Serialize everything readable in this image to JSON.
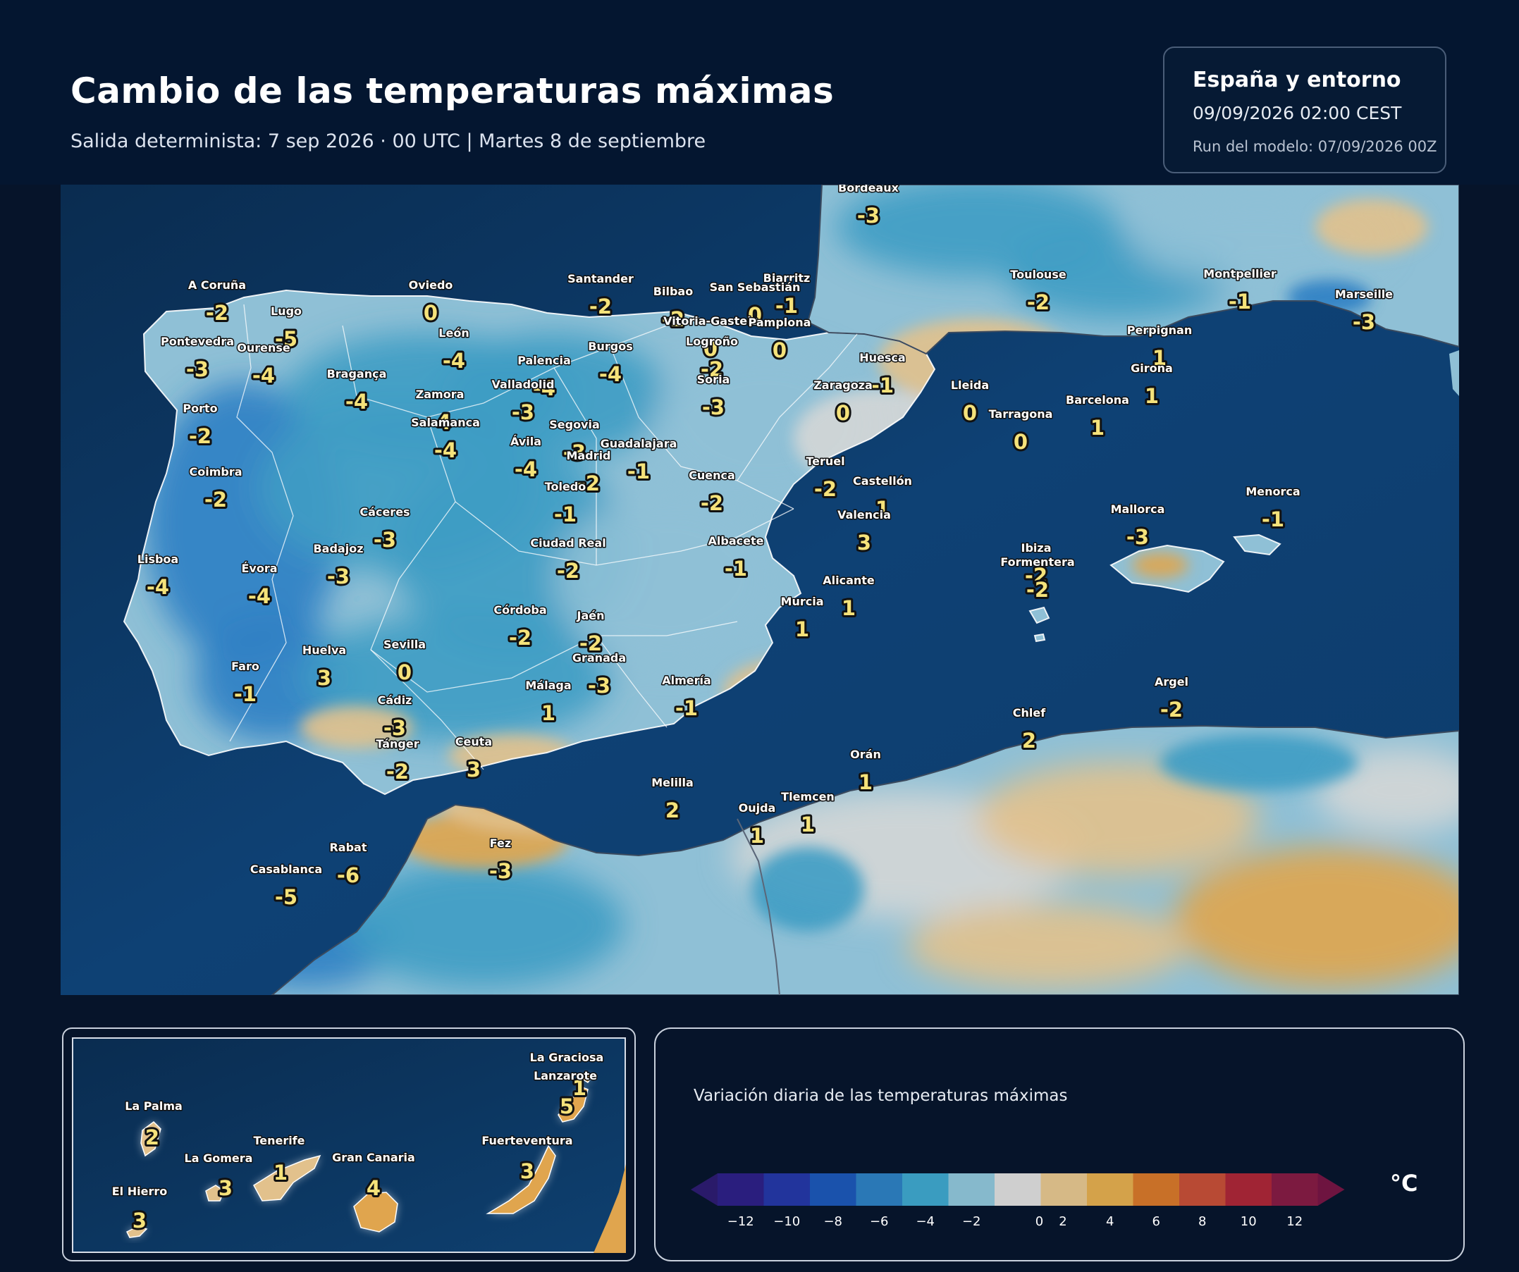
{
  "header": {
    "title": "Cambio de las temperaturas máximas",
    "subtitle": "Salida determinista: 7 sep 2026 · 00 UTC  |  Martes 8 de septiembre"
  },
  "info": {
    "region": "España y entorno",
    "valid_time": "09/09/2026  02:00 CEST",
    "run": "Run del modelo: 07/09/2026 00Z"
  },
  "colors": {
    "sea": "#0c3a66",
    "sea_deep": "#082c52",
    "land_base": "#8fc0d6",
    "cold_1": "#3e9cc4",
    "cold_2": "#2f7fc4",
    "neutral": "#d4d6d6",
    "warm_1": "#e2c18c",
    "warm_2": "#e0a54e",
    "label_value": "#f5e27a"
  },
  "map": {
    "cities": [
      {
        "name": "Bordeaux",
        "value": "-3"
      },
      {
        "name": "A Coruña",
        "value": "-2"
      },
      {
        "name": "Oviedo",
        "value": "0"
      },
      {
        "name": "Santander",
        "value": "-2"
      },
      {
        "name": "Bilbao",
        "value": "-2"
      },
      {
        "name": "Biarritz",
        "value": "-1"
      },
      {
        "name": "San Sebastián",
        "value": "0"
      },
      {
        "name": "Toulouse",
        "value": "-2"
      },
      {
        "name": "Montpellier",
        "value": "-1"
      },
      {
        "name": "Marseille",
        "value": "-3"
      },
      {
        "name": "Lugo",
        "value": "-5"
      },
      {
        "name": "Vitoria-Gasteiz",
        "value": "0"
      },
      {
        "name": "Pamplona",
        "value": "0"
      },
      {
        "name": "Pontevedra",
        "value": "-3"
      },
      {
        "name": "Ourense",
        "value": "-4"
      },
      {
        "name": "León",
        "value": "-4"
      },
      {
        "name": "Burgos",
        "value": "-4"
      },
      {
        "name": "Logroño",
        "value": "-2"
      },
      {
        "name": "Perpignan",
        "value": "1"
      },
      {
        "name": "Palencia",
        "value": "-4"
      },
      {
        "name": "Huesca",
        "value": "-1"
      },
      {
        "name": "Girona",
        "value": "1"
      },
      {
        "name": "Bragança",
        "value": "-4"
      },
      {
        "name": "Valladolid",
        "value": "-3"
      },
      {
        "name": "Soria",
        "value": "-3"
      },
      {
        "name": "Zaragoza",
        "value": "0"
      },
      {
        "name": "Lleida",
        "value": "0"
      },
      {
        "name": "Barcelona",
        "value": "1"
      },
      {
        "name": "Zamora",
        "value": "-4"
      },
      {
        "name": "Porto",
        "value": "-2"
      },
      {
        "name": "Tarragona",
        "value": "0"
      },
      {
        "name": "Salamanca",
        "value": "-4"
      },
      {
        "name": "Segovia",
        "value": "-3"
      },
      {
        "name": "Ávila",
        "value": "-4"
      },
      {
        "name": "Guadalajara",
        "value": "-1"
      },
      {
        "name": "Madrid",
        "value": "-2"
      },
      {
        "name": "Teruel",
        "value": "-2"
      },
      {
        "name": "Coimbra",
        "value": "-2"
      },
      {
        "name": "Cuenca",
        "value": "-2"
      },
      {
        "name": "Toledo",
        "value": "-1"
      },
      {
        "name": "Castellón",
        "value": "1"
      },
      {
        "name": "Menorca",
        "value": "-1"
      },
      {
        "name": "Cáceres",
        "value": "-3"
      },
      {
        "name": "Valencia",
        "value": "3"
      },
      {
        "name": "Mallorca",
        "value": "-3"
      },
      {
        "name": "Ciudad Real",
        "value": "-2"
      },
      {
        "name": "Albacete",
        "value": "-1"
      },
      {
        "name": "Badajoz",
        "value": "-3"
      },
      {
        "name": "Ibiza",
        "value": "-2"
      },
      {
        "name": "Lisboa",
        "value": "-4"
      },
      {
        "name": "Formentera",
        "value": "-2"
      },
      {
        "name": "Évora",
        "value": "-4"
      },
      {
        "name": "Alicante",
        "value": "1"
      },
      {
        "name": "Murcia",
        "value": "1"
      },
      {
        "name": "Córdoba",
        "value": "-2"
      },
      {
        "name": "Jaén",
        "value": "-2"
      },
      {
        "name": "Sevilla",
        "value": "0"
      },
      {
        "name": "Huelva",
        "value": "3"
      },
      {
        "name": "Granada",
        "value": "-3"
      },
      {
        "name": "Faro",
        "value": "-1"
      },
      {
        "name": "Almería",
        "value": "-1"
      },
      {
        "name": "Málaga",
        "value": "1"
      },
      {
        "name": "Argel",
        "value": "-2"
      },
      {
        "name": "Cádiz",
        "value": "-3"
      },
      {
        "name": "Chlef",
        "value": "2"
      },
      {
        "name": "Ceuta",
        "value": "3"
      },
      {
        "name": "Tánger",
        "value": "-2"
      },
      {
        "name": "Orán",
        "value": "1"
      },
      {
        "name": "Melilla",
        "value": "2"
      },
      {
        "name": "Tlemcen",
        "value": "1"
      },
      {
        "name": "Oujda",
        "value": "1"
      },
      {
        "name": "Rabat",
        "value": "-6"
      },
      {
        "name": "Fez",
        "value": "-3"
      },
      {
        "name": "Casablanca",
        "value": "-5"
      }
    ]
  },
  "inset": {
    "islands": [
      {
        "name": "La Graciosa",
        "value": "1"
      },
      {
        "name": "Lanzarote",
        "value": "5"
      },
      {
        "name": "La Palma",
        "value": "2"
      },
      {
        "name": "Fuerteventura",
        "value": "3"
      },
      {
        "name": "Tenerife",
        "value": "1"
      },
      {
        "name": "Gran Canaria",
        "value": "4"
      },
      {
        "name": "La Gomera",
        "value": "3"
      },
      {
        "name": "El Hierro",
        "value": "3"
      }
    ]
  },
  "legend": {
    "title": "Variación diaria de las temperaturas máximas",
    "unit": "°C",
    "ticks": [
      "−12",
      "−10",
      "−8",
      "−6",
      "−4",
      "−2",
      "0",
      "2",
      "4",
      "6",
      "8",
      "10",
      "12"
    ],
    "bins": [
      "#2a1e7e",
      "#22349c",
      "#1a52ac",
      "#2a78b6",
      "#3a9cc0",
      "#86b9cc",
      "#cfcfcf",
      "#d6b986",
      "#d4a24a",
      "#c87028",
      "#b84a34",
      "#a02434",
      "#7c1a40"
    ],
    "ext_low": "#2a1a6a",
    "ext_high": "#6e1440"
  }
}
